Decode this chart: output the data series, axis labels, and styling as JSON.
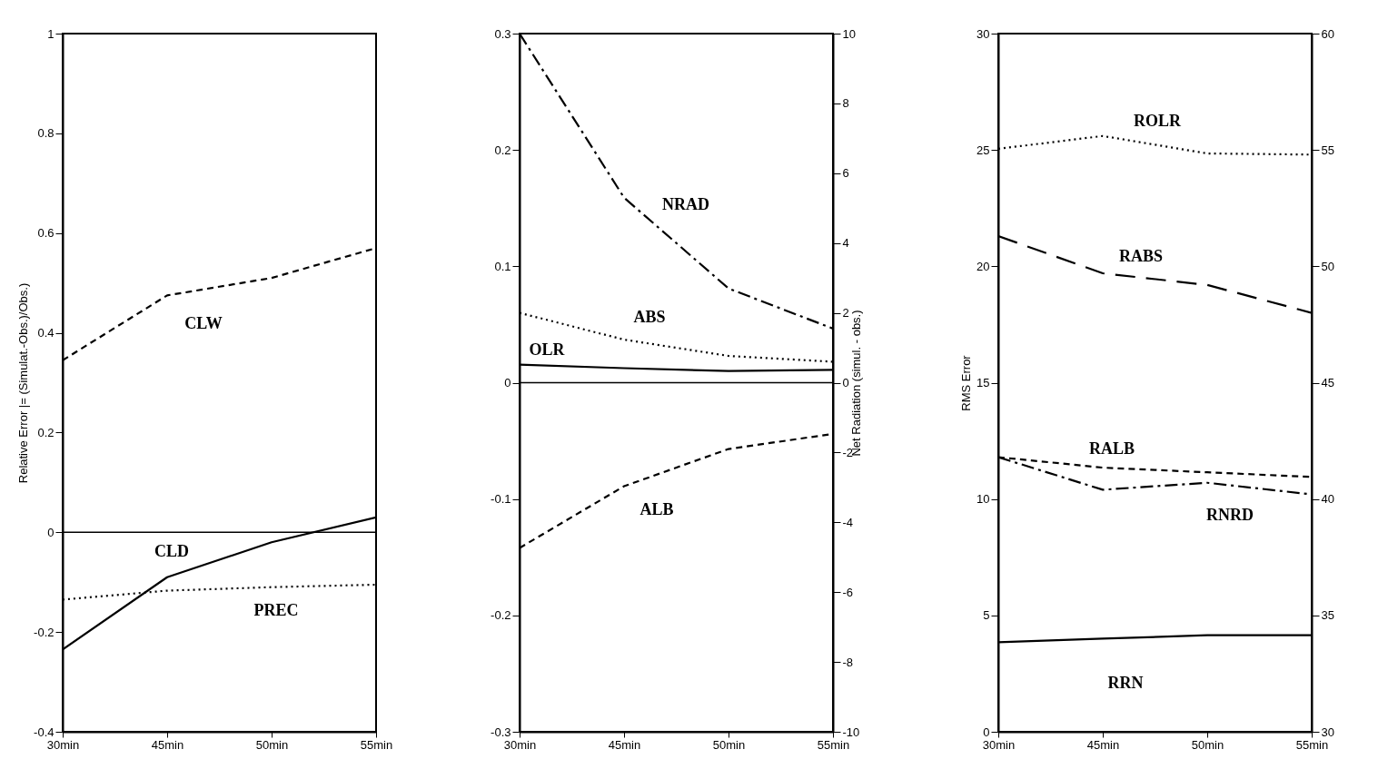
{
  "chart_data": [
    {
      "type": "line",
      "ylabel": "Relative Error |= (Simulat.-Obs.)/Obs.)",
      "categories": [
        "30min",
        "45min",
        "50min",
        "55min"
      ],
      "ylim": [
        -0.4,
        1
      ],
      "yticks": [
        -0.4,
        -0.2,
        0,
        0.2,
        0.4,
        0.6,
        0.8,
        1
      ],
      "ref_lines": [
        {
          "axis": "y",
          "value": 0,
          "label": null
        }
      ],
      "series": [
        {
          "name": "CLW",
          "color": "#000000",
          "line_style": "dashed",
          "values": [
            0.345,
            0.475,
            0.51,
            0.57
          ]
        },
        {
          "name": "CLD",
          "color": "#000000",
          "line_style": "solid",
          "values": [
            -0.235,
            -0.09,
            -0.02,
            0.03
          ]
        },
        {
          "name": "PREC",
          "color": "#000000",
          "line_style": "dotted",
          "values": [
            -0.135,
            -0.117,
            -0.11,
            -0.105
          ]
        }
      ]
    },
    {
      "type": "line",
      "y2label": "Net Radiation (simul. - obs.)",
      "categories": [
        "30min",
        "45min",
        "50min",
        "55min"
      ],
      "ylim": [
        -0.3,
        0.3
      ],
      "yticks": [
        -0.3,
        -0.2,
        -0.1,
        0,
        0.1,
        0.2,
        0.3
      ],
      "y2lim": [
        -10,
        10
      ],
      "y2ticks": [
        -10,
        -8,
        -6,
        -4,
        -2,
        0,
        2,
        4,
        6,
        8,
        10
      ],
      "ref_lines": [
        {
          "axis": "y",
          "value": 0,
          "label": null
        }
      ],
      "series": [
        {
          "name": "NRAD",
          "color": "#000000",
          "line_style": "dashdot",
          "axis": "y2",
          "values": [
            10,
            5.3,
            2.7,
            1.55
          ]
        },
        {
          "name": "ABS",
          "color": "#000000",
          "line_style": "dotted",
          "values": [
            0.06,
            0.037,
            0.023,
            0.018
          ]
        },
        {
          "name": "OLR",
          "color": "#000000",
          "line_style": "solid",
          "values": [
            0.0155,
            0.0125,
            0.01,
            0.011
          ]
        },
        {
          "name": "ALB",
          "color": "#000000",
          "line_style": "dashed",
          "values": [
            -0.142,
            -0.089,
            -0.057,
            -0.044
          ]
        }
      ]
    },
    {
      "type": "line",
      "ylabel": "RMS Error",
      "categories": [
        "30min",
        "45min",
        "50min",
        "55min"
      ],
      "ylim": [
        0,
        30
      ],
      "yticks": [
        0,
        5,
        10,
        15,
        20,
        25,
        30
      ],
      "y2lim": [
        30,
        60
      ],
      "y2ticks": [
        30,
        35,
        40,
        45,
        50,
        55,
        60
      ],
      "series": [
        {
          "name": "ROLR",
          "color": "#000000",
          "line_style": "dotted",
          "values": [
            25.05,
            25.6,
            24.85,
            24.8
          ]
        },
        {
          "name": "RABS",
          "color": "#000000",
          "line_style": "longdash",
          "values": [
            21.3,
            19.7,
            19.2,
            18.0
          ]
        },
        {
          "name": "RALB",
          "color": "#000000",
          "line_style": "dashed",
          "values": [
            11.8,
            11.35,
            11.15,
            10.95
          ]
        },
        {
          "name": "RNRD",
          "color": "#000000",
          "line_style": "dashdot",
          "values": [
            11.8,
            10.4,
            10.7,
            10.2
          ]
        },
        {
          "name": "RRN",
          "color": "#000000",
          "line_style": "solid",
          "values": [
            3.85,
            4.0,
            4.15,
            4.15
          ]
        }
      ]
    }
  ]
}
